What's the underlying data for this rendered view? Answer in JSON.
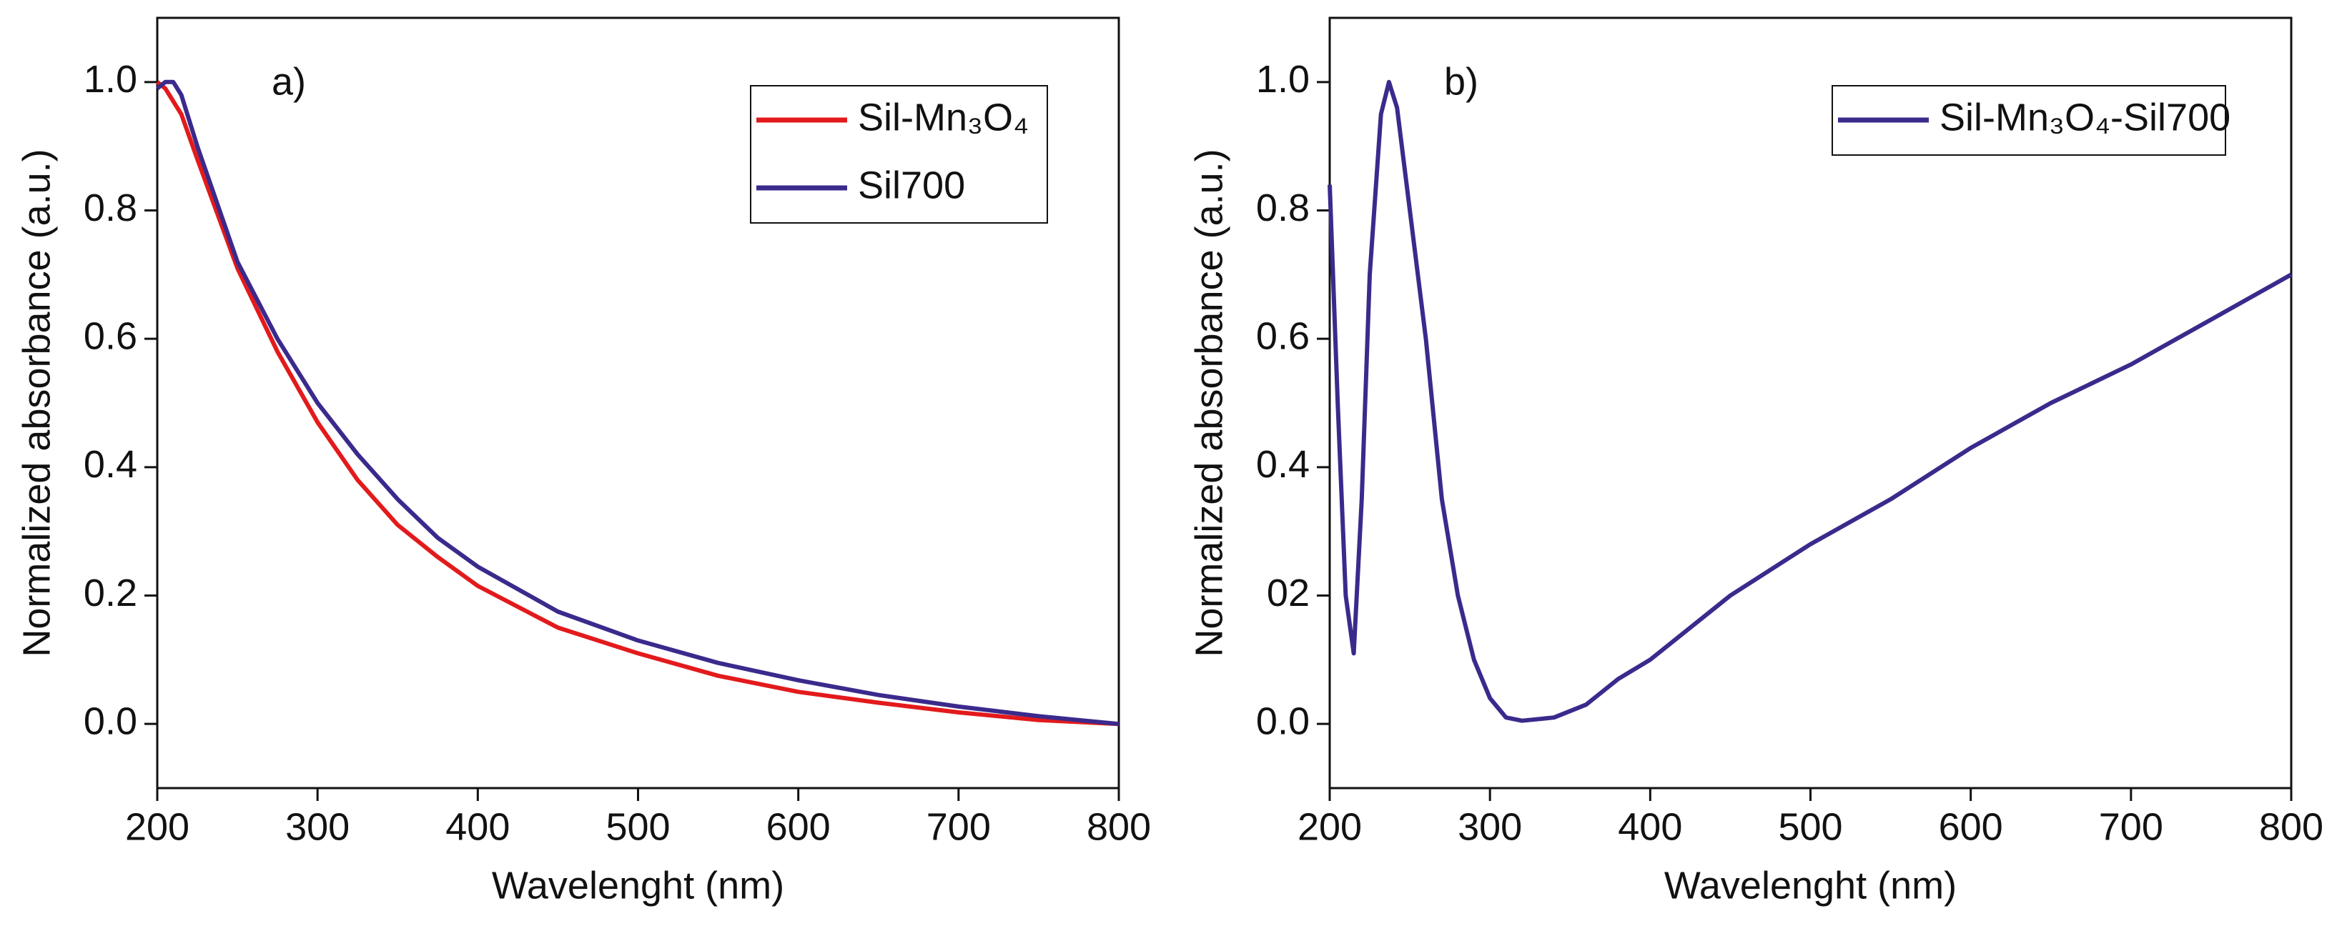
{
  "chart_data": [
    {
      "type": "line",
      "annotation": "a)",
      "x_label": "Wavelenght (nm)",
      "y_label": "Normalized absorbance (a.u.)",
      "x": [
        200,
        205,
        210,
        215,
        225,
        250,
        275,
        300,
        325,
        350,
        375,
        400,
        450,
        500,
        550,
        600,
        650,
        700,
        750,
        800
      ],
      "series": [
        {
          "name": "Sil-Mn₃O₄",
          "color": "#e31a1c",
          "values": [
            1.0,
            0.99,
            0.97,
            0.95,
            0.88,
            0.71,
            0.58,
            0.47,
            0.38,
            0.31,
            0.26,
            0.215,
            0.15,
            0.11,
            0.075,
            0.05,
            0.033,
            0.018,
            0.006,
            0.0
          ]
        },
        {
          "name": "Sil700",
          "color": "#3b2a8c",
          "values": [
            0.99,
            1.0,
            1.0,
            0.98,
            0.9,
            0.72,
            0.6,
            0.5,
            0.42,
            0.35,
            0.29,
            0.245,
            0.175,
            0.13,
            0.095,
            0.068,
            0.045,
            0.027,
            0.012,
            0.0
          ]
        }
      ],
      "xlim": [
        200,
        800
      ],
      "xticks": [
        200,
        300,
        400,
        500,
        600,
        700,
        800
      ],
      "ylim": [
        -0.1,
        1.1
      ],
      "yticks": [
        {
          "value": 0,
          "label": "0.0"
        },
        0.2,
        0.4,
        0.6,
        0.8,
        {
          "value": 1,
          "label": "1.0"
        }
      ]
    },
    {
      "type": "line",
      "annotation": "b)",
      "x_label": "Wavelenght (nm)",
      "y_label": "Normalized absorbance (a.u.)",
      "x": [
        200,
        205,
        210,
        215,
        220,
        225,
        232,
        237,
        242,
        250,
        260,
        270,
        280,
        290,
        300,
        310,
        320,
        340,
        360,
        380,
        400,
        450,
        500,
        550,
        600,
        650,
        700,
        750,
        800
      ],
      "series": [
        {
          "name": "Sil-Mn₃O₄-Sil700",
          "color": "#3b2a8c",
          "values": [
            0.84,
            0.5,
            0.2,
            0.11,
            0.35,
            0.7,
            0.95,
            1.0,
            0.96,
            0.8,
            0.6,
            0.35,
            0.2,
            0.1,
            0.04,
            0.01,
            0.005,
            0.01,
            0.03,
            0.07,
            0.1,
            0.2,
            0.28,
            0.35,
            0.43,
            0.5,
            0.56,
            0.63,
            0.7
          ]
        }
      ],
      "xlim": [
        200,
        800
      ],
      "xticks": [
        200,
        300,
        400,
        500,
        600,
        700,
        800
      ],
      "ylim": [
        -0.1,
        1.1
      ],
      "yticks": [
        {
          "value": 0,
          "label": "0.0"
        },
        {
          "value": 0.2,
          "label": "02"
        },
        0.4,
        0.6,
        0.8,
        {
          "value": 1,
          "label": "1.0"
        }
      ]
    }
  ]
}
